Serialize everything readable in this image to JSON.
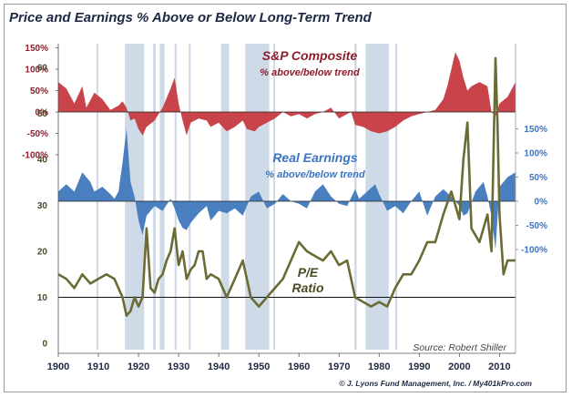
{
  "page": {
    "title": "Price and Earnings % Above or Below Long-Term Trend",
    "source": "Source: Robert Shiller",
    "copyright": "© J. Lyons Fund Management, Inc. / My401kPro.com"
  },
  "colors": {
    "price": "#c8444a",
    "earnings": "#4a7fbf",
    "pe": "#6b6b35",
    "shade": "#c5d3e3",
    "price_text": "#8c1d2e",
    "earnings_text": "#3d74c0"
  },
  "chart_data": [
    {
      "type": "area",
      "panel": "price",
      "label_line1": "S&P Composite",
      "label_line2": "% above/below trend",
      "yticks": [
        "150%",
        "100%",
        "50%",
        "0%",
        "-50%",
        "-100%"
      ],
      "ytick_values": [
        150,
        100,
        50,
        0,
        -50,
        -100
      ],
      "ylim": [
        -100,
        150
      ],
      "x": [
        1900,
        1902,
        1904,
        1906,
        1907,
        1909,
        1911,
        1913,
        1915,
        1916,
        1917,
        1918,
        1919,
        1920,
        1921,
        1922,
        1924,
        1926,
        1928,
        1929,
        1930,
        1931,
        1932,
        1933,
        1935,
        1937,
        1938,
        1940,
        1942,
        1944,
        1946,
        1947,
        1949,
        1950,
        1952,
        1954,
        1956,
        1958,
        1960,
        1962,
        1964,
        1966,
        1968,
        1970,
        1972,
        1973,
        1974,
        1976,
        1978,
        1980,
        1982,
        1984,
        1986,
        1988,
        1990,
        1992,
        1994,
        1996,
        1997,
        1998,
        1999,
        2000,
        2001,
        2002,
        2003,
        2005,
        2007,
        2008,
        2009,
        2010,
        2012,
        2014
      ],
      "values": [
        70,
        55,
        20,
        60,
        10,
        45,
        30,
        5,
        15,
        25,
        10,
        -20,
        -15,
        -40,
        -55,
        -35,
        -20,
        10,
        55,
        80,
        20,
        -20,
        -55,
        -25,
        -15,
        -20,
        -35,
        -25,
        -45,
        -35,
        -20,
        -40,
        -45,
        -35,
        -25,
        -15,
        0,
        -10,
        -5,
        -15,
        -5,
        0,
        10,
        -15,
        -5,
        0,
        -30,
        -35,
        -45,
        -50,
        -45,
        -35,
        -20,
        -10,
        -5,
        0,
        5,
        30,
        60,
        100,
        140,
        120,
        80,
        50,
        60,
        70,
        60,
        0,
        -10,
        20,
        35,
        70
      ]
    },
    {
      "type": "area",
      "panel": "earnings",
      "label_line1": "Real Earnings",
      "label_line2": "% above/below trend",
      "yticks": [
        "150%",
        "100%",
        "50%",
        "0%",
        "-50%",
        "-100%"
      ],
      "ytick_values": [
        150,
        100,
        50,
        0,
        -50,
        -100
      ],
      "ylim": [
        -100,
        150
      ],
      "x": [
        1900,
        1902,
        1904,
        1906,
        1908,
        1909,
        1911,
        1913,
        1914,
        1915,
        1916,
        1917,
        1918,
        1919,
        1920,
        1921,
        1922,
        1924,
        1926,
        1928,
        1929,
        1930,
        1931,
        1932,
        1933,
        1935,
        1937,
        1938,
        1940,
        1942,
        1944,
        1946,
        1948,
        1950,
        1952,
        1954,
        1956,
        1958,
        1960,
        1962,
        1964,
        1966,
        1968,
        1970,
        1972,
        1974,
        1975,
        1977,
        1979,
        1980,
        1982,
        1984,
        1986,
        1988,
        1990,
        1992,
        1994,
        1996,
        1998,
        2000,
        2001,
        2002,
        2004,
        2006,
        2007,
        2008,
        2009,
        2010,
        2012,
        2014
      ],
      "values": [
        20,
        35,
        20,
        60,
        40,
        20,
        30,
        15,
        5,
        20,
        80,
        150,
        40,
        10,
        -40,
        -70,
        -30,
        -10,
        -20,
        5,
        -15,
        -40,
        -55,
        -60,
        -45,
        -25,
        -10,
        -40,
        -20,
        -25,
        -15,
        -30,
        10,
        20,
        -15,
        -5,
        15,
        0,
        -5,
        -15,
        20,
        35,
        10,
        -5,
        -10,
        25,
        5,
        20,
        35,
        15,
        -20,
        -10,
        -25,
        0,
        20,
        -30,
        10,
        25,
        10,
        -10,
        -30,
        -25,
        20,
        40,
        10,
        -30,
        -100,
        30,
        50,
        60
      ]
    },
    {
      "type": "line",
      "panel": "pe",
      "label_line1": "P/E",
      "label_line2": "Ratio",
      "yticks": [
        "60",
        "50",
        "40",
        "30",
        "20",
        "10",
        "0"
      ],
      "ytick_values": [
        60,
        50,
        40,
        30,
        20,
        10,
        0
      ],
      "ylim": [
        0,
        65
      ],
      "reference_line": 10,
      "x": [
        1900,
        1902,
        1904,
        1906,
        1908,
        1910,
        1912,
        1914,
        1916,
        1917,
        1918,
        1919,
        1920,
        1921,
        1922,
        1923,
        1924,
        1925,
        1926,
        1927,
        1928,
        1929,
        1930,
        1931,
        1932,
        1933,
        1934,
        1935,
        1936,
        1937,
        1938,
        1940,
        1942,
        1944,
        1946,
        1948,
        1950,
        1952,
        1954,
        1956,
        1958,
        1960,
        1962,
        1964,
        1966,
        1968,
        1970,
        1972,
        1974,
        1976,
        1978,
        1980,
        1982,
        1984,
        1986,
        1988,
        1990,
        1992,
        1994,
        1996,
        1998,
        2000,
        2001,
        2002,
        2003,
        2005,
        2007,
        2008,
        2009,
        2009.5,
        2010,
        2011,
        2012,
        2014
      ],
      "values": [
        15,
        14,
        12,
        15,
        13,
        14,
        15,
        14,
        10,
        6,
        7,
        10,
        8,
        10,
        25,
        12,
        11,
        14,
        15,
        18,
        20,
        25,
        17,
        20,
        14,
        16,
        17,
        20,
        20,
        14,
        15,
        14,
        10,
        14,
        18,
        10,
        8,
        10,
        12,
        14,
        18,
        22,
        20,
        19,
        18,
        20,
        17,
        18,
        10,
        9,
        8,
        9,
        8,
        12,
        15,
        15,
        18,
        22,
        22,
        28,
        33,
        27,
        40,
        48,
        25,
        22,
        28,
        20,
        62,
        48,
        28,
        15,
        18,
        18
      ]
    }
  ],
  "x_axis": {
    "ticks": [
      "1900",
      "1910",
      "1920",
      "1930",
      "1940",
      "1950",
      "1960",
      "1970",
      "1980",
      "1990",
      "2000",
      "2010"
    ],
    "tick_values": [
      1900,
      1910,
      1920,
      1930,
      1940,
      1950,
      1960,
      1970,
      1980,
      1990,
      2000,
      2010
    ],
    "xlim": [
      1900,
      2014
    ]
  },
  "shaded_periods": [
    [
      1909.5,
      1910
    ],
    [
      1916.6,
      1921.4
    ],
    [
      1923.6,
      1924.3
    ],
    [
      1925.3,
      1926.5
    ],
    [
      1929,
      1929.5
    ],
    [
      1932.5,
      1933
    ],
    [
      1940.6,
      1942.6
    ],
    [
      1946.6,
      1952.6
    ],
    [
      1953.6,
      1954
    ],
    [
      1973.8,
      1974.4
    ],
    [
      1976.6,
      1982.4
    ],
    [
      1984,
      1984.5
    ]
  ]
}
